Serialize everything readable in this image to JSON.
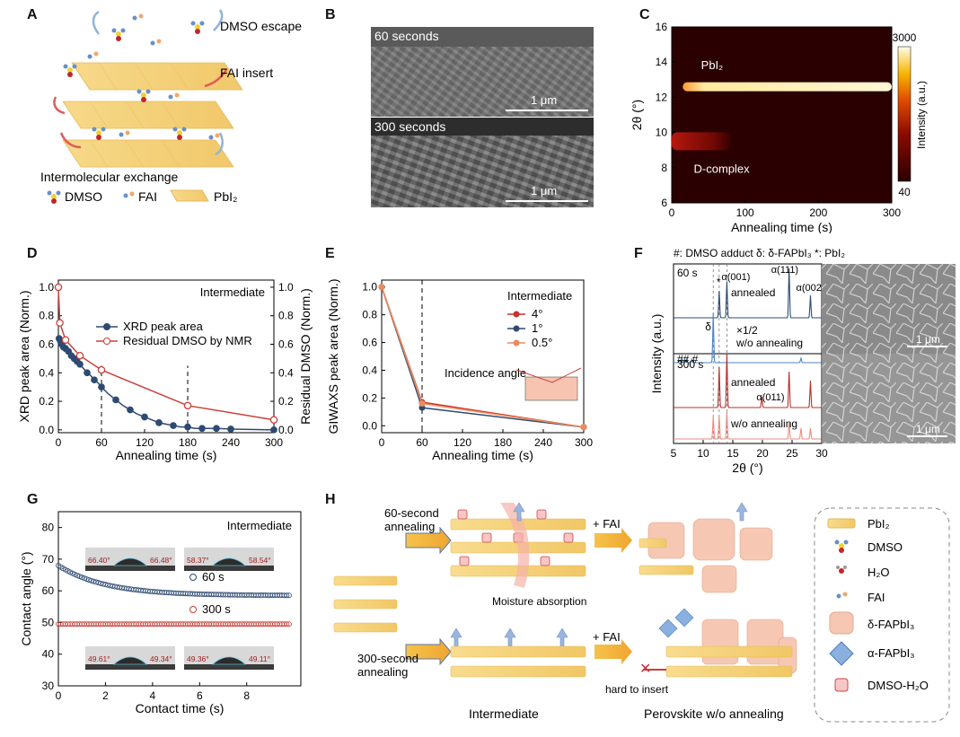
{
  "panel_letters": [
    "A",
    "B",
    "C",
    "D",
    "E",
    "F",
    "G",
    "H"
  ],
  "panelA": {
    "dmso_escape": "DMSO escape",
    "fai_insert": "FAI insert",
    "exchange": "Intermolecular exchange",
    "legend": [
      "DMSO",
      "FAI",
      "PbI₂"
    ]
  },
  "panelB": {
    "top_label": "60 seconds",
    "bottom_label": "300 seconds",
    "scale": "1 μm"
  },
  "panelC": {
    "pbi2_label": "PbI₂",
    "dcomplex_label": "D-complex",
    "colorbar_label": "Intensity (a.u.)",
    "colorbar_max": "3000",
    "colorbar_min": "40"
  },
  "panelF": {
    "header": "#: DMSO adduct  δ: δ-FAPbI₃  *: PbI₂",
    "t60": "60 s",
    "t300": "300 s",
    "annealed": "annealed",
    "wo": "w/o annealing",
    "half": "×1/2",
    "hash": "## #",
    "delta": "δ",
    "star": "*",
    "a001": "α(001)",
    "a111": "α(111)",
    "a002": "α(002)",
    "a011": "α(011)",
    "scale": "1 μm"
  },
  "panelG": {
    "legend_60": "60 s",
    "legend_300": "300 s",
    "angles_60": [
      "66.40°",
      "66.48°",
      "58.37°",
      "58.54°"
    ],
    "angles_300": [
      "49.61°",
      "49.34°",
      "49.36°",
      "49.11°"
    ]
  },
  "panelH": {
    "sixty": "60-second\nannealing",
    "three_hundred": "300-second\nannealing",
    "plus_fai_1": "+ FAI",
    "plus_fai_2": "+ FAI",
    "moisture": "Moisture absorption",
    "hard": "hard to insert",
    "intermediate": "Intermediate",
    "perovskite": "Perovskite w/o annealing",
    "legend": [
      "PbI₂",
      "DMSO",
      "H₂O",
      "FAI",
      "δ-FAPbI₃",
      "α-FAPbI₃",
      "DMSO-H₂O"
    ]
  },
  "chart_data": [
    {
      "id": "C",
      "type": "heatmap",
      "xlabel": "Annealing time (s)",
      "ylabel": "2θ (°)",
      "xlim": [
        0,
        300
      ],
      "ylim": [
        6,
        16
      ],
      "xticks": [
        0,
        100,
        200,
        300
      ],
      "yticks": [
        6,
        8,
        10,
        12,
        14,
        16
      ],
      "features": [
        {
          "name": "PbI₂",
          "two_theta": 12.6,
          "from_s": 15,
          "to_s": 300
        },
        {
          "name": "D-complex",
          "two_theta": 9.5,
          "from_s": 0,
          "to_s": 80
        }
      ],
      "color_range": [
        40,
        3000
      ]
    },
    {
      "id": "D",
      "type": "line",
      "title": "Intermediate",
      "xlabel": "Annealing time (s)",
      "ylabel": "XRD peak area (Norm.)",
      "y2label": "Residual DMSO (Norm.)",
      "xlim": [
        0,
        300
      ],
      "ylim": [
        0,
        1.0
      ],
      "xticks": [
        0,
        60,
        120,
        180,
        240,
        300
      ],
      "yticks": [
        0.0,
        0.2,
        0.4,
        0.6,
        0.8,
        1.0
      ],
      "vlines": [
        60,
        180
      ],
      "series": [
        {
          "name": "XRD peak area",
          "color": "#2e4a72",
          "x": [
            1,
            2,
            3,
            4,
            5,
            6,
            7,
            8,
            10,
            12,
            14,
            16,
            18,
            20,
            22,
            24,
            26,
            28,
            30,
            35,
            40,
            45,
            50,
            55,
            60,
            70,
            80,
            90,
            100,
            110,
            120,
            130,
            140,
            150,
            160,
            170,
            180,
            190,
            200,
            220,
            240,
            300
          ],
          "y": [
            0.64,
            0.63,
            0.62,
            0.61,
            0.6,
            0.59,
            0.58,
            0.58,
            0.57,
            0.56,
            0.55,
            0.53,
            0.52,
            0.51,
            0.5,
            0.49,
            0.48,
            0.47,
            0.46,
            0.43,
            0.4,
            0.38,
            0.35,
            0.33,
            0.3,
            0.25,
            0.21,
            0.17,
            0.14,
            0.11,
            0.09,
            0.07,
            0.05,
            0.04,
            0.03,
            0.02,
            0.02,
            0.01,
            0.01,
            0.01,
            0.005,
            0.0
          ]
        },
        {
          "name": "Residual DMSO by NMR",
          "color": "#c9403a",
          "x": [
            0,
            2,
            10,
            30,
            60,
            180,
            300
          ],
          "y": [
            1.0,
            0.75,
            0.63,
            0.52,
            0.42,
            0.17,
            0.07
          ]
        }
      ]
    },
    {
      "id": "E",
      "type": "line",
      "xlabel": "Annealing time (s)",
      "ylabel": "GIWAXS peak area (Norm.)",
      "legend_title": "Intermediate",
      "inset_label": "Incidence angle",
      "xlim": [
        0,
        300
      ],
      "ylim": [
        0,
        1.0
      ],
      "xticks": [
        0,
        60,
        120,
        180,
        240,
        300
      ],
      "yticks": [
        0.0,
        0.2,
        0.4,
        0.6,
        0.8,
        1.0
      ],
      "vlines": [
        60
      ],
      "series": [
        {
          "name": "4°",
          "color": "#c9302c",
          "x": [
            0,
            60,
            300
          ],
          "y": [
            1.0,
            0.17,
            -0.01
          ]
        },
        {
          "name": "1°",
          "color": "#2e4a72",
          "x": [
            0,
            60,
            300
          ],
          "y": [
            1.0,
            0.13,
            -0.01
          ]
        },
        {
          "name": "0.5°",
          "color": "#ef8a5a",
          "x": [
            0,
            60,
            300
          ],
          "y": [
            1.0,
            0.16,
            -0.01
          ]
        }
      ]
    },
    {
      "id": "F",
      "type": "line",
      "xlabel": "2θ (°)",
      "ylabel": "Intensity (a.u.)",
      "xlim": [
        5,
        30
      ],
      "xticks": [
        5,
        10,
        15,
        20,
        25,
        30
      ],
      "series": [
        {
          "name": "60 s annealed",
          "color": "#2e4a72",
          "peaks": [
            [
              12.7,
              30
            ],
            [
              14.0,
              40
            ],
            [
              24.5,
              55
            ],
            [
              28.1,
              25
            ]
          ]
        },
        {
          "name": "60 s w/o annealing",
          "color": "#4f86c0",
          "peaks": [
            [
              6.5,
              4
            ],
            [
              7.2,
              4
            ],
            [
              8.1,
              4
            ],
            [
              11.7,
              55
            ],
            [
              26.5,
              5
            ]
          ]
        },
        {
          "name": "300 s annealed",
          "color": "#b8302a",
          "peaks": [
            [
              12.7,
              45
            ],
            [
              14.0,
              60
            ],
            [
              19.9,
              12
            ],
            [
              24.5,
              40
            ],
            [
              28.1,
              30
            ]
          ]
        },
        {
          "name": "300 s w/o annealing",
          "color": "#ee8a82",
          "peaks": [
            [
              11.7,
              25
            ],
            [
              12.7,
              25
            ],
            [
              14.0,
              30
            ],
            [
              24.5,
              18
            ],
            [
              26.5,
              12
            ],
            [
              28.1,
              12
            ]
          ]
        }
      ]
    },
    {
      "id": "G",
      "type": "scatter",
      "title": "Intermediate",
      "xlabel": "Contact time (s)",
      "ylabel": "Contact angle (°)",
      "xlim": [
        0,
        10
      ],
      "ylim": [
        30,
        85
      ],
      "xticks": [
        0,
        2,
        4,
        6,
        8
      ],
      "yticks": [
        30,
        40,
        50,
        60,
        70,
        80
      ],
      "series": [
        {
          "name": "60 s",
          "color": "#2e4a72",
          "model": "exp",
          "start": 68,
          "end": 58.5,
          "tau": 2.0
        },
        {
          "name": "300 s",
          "color": "#c9403a",
          "model": "flat",
          "value": 49.5
        }
      ]
    }
  ]
}
